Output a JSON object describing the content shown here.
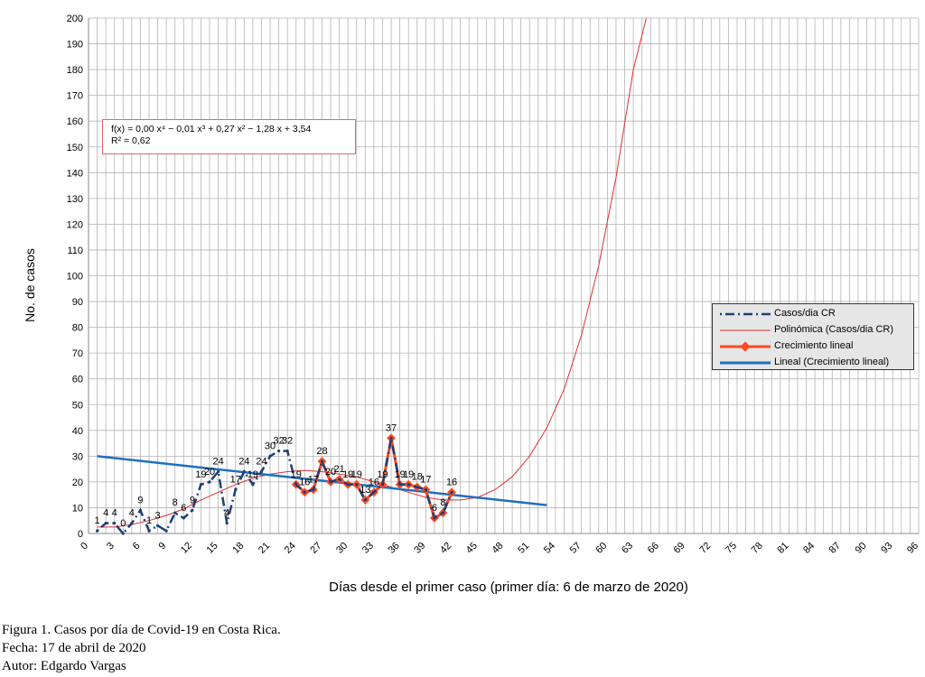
{
  "chart_data": {
    "type": "line",
    "title": "",
    "xlabel": "Días desde el primer caso (primer día: 6 de marzo de 2020)",
    "ylabel": "No. de casos",
    "xlim": [
      0,
      96
    ],
    "ylim": [
      0,
      200
    ],
    "x_ticks": [
      0,
      3,
      6,
      9,
      12,
      15,
      18,
      21,
      24,
      27,
      30,
      33,
      36,
      39,
      42,
      45,
      48,
      51,
      54,
      57,
      60,
      63,
      66,
      69,
      72,
      75,
      78,
      81,
      84,
      87,
      90,
      93,
      96
    ],
    "y_ticks": [
      0,
      10,
      20,
      30,
      40,
      50,
      60,
      70,
      80,
      90,
      100,
      110,
      120,
      130,
      140,
      150,
      160,
      170,
      180,
      190,
      200
    ],
    "grid": true,
    "legend_position": "right",
    "series": [
      {
        "name": "Casos/dia CR",
        "style": "dash-dot",
        "color": "#1f3f7a",
        "x": [
          1,
          2,
          3,
          4,
          5,
          6,
          7,
          8,
          9,
          10,
          11,
          12,
          13,
          14,
          15,
          16,
          17,
          18,
          19,
          20,
          21,
          22,
          23,
          24,
          25,
          26,
          27,
          28,
          29,
          30,
          31,
          32,
          33,
          34,
          35,
          36,
          37,
          38,
          39,
          40,
          41,
          42
        ],
        "values": [
          1,
          4,
          4,
          0,
          4,
          9,
          1,
          3,
          1,
          8,
          6,
          9,
          19,
          20,
          24,
          4,
          17,
          24,
          19,
          24,
          30,
          32,
          32,
          19,
          16,
          17,
          28,
          20,
          21,
          19,
          19,
          13,
          16,
          19,
          37,
          19,
          19,
          18,
          17,
          6,
          8,
          16
        ]
      },
      {
        "name": "Polinómica (Casos/dia CR)",
        "style": "line",
        "color": "#e03030",
        "x": [
          1,
          3,
          5,
          7,
          9,
          11,
          13,
          15,
          17,
          19,
          21,
          23,
          25,
          27,
          29,
          31,
          33,
          35,
          37,
          39,
          41,
          43,
          45,
          47,
          49,
          51,
          53,
          55,
          57,
          59,
          61,
          63,
          64.5
        ],
        "values": [
          2.5,
          2.5,
          3.5,
          5,
          7,
          9.5,
          13,
          16,
          19,
          21.5,
          23,
          24,
          24.5,
          24,
          23,
          22,
          20,
          18,
          16,
          14,
          13,
          13,
          14,
          17,
          22,
          30,
          41,
          56,
          77,
          104,
          138,
          180,
          200
        ]
      },
      {
        "name": "Crecimiento lineal",
        "style": "marker-line",
        "color": "#ff4a1f",
        "x": [
          24,
          25,
          26,
          27,
          28,
          29,
          30,
          31,
          32,
          33,
          34,
          35,
          36,
          37,
          38,
          39,
          40,
          41,
          42
        ],
        "values": [
          19,
          16,
          17,
          28,
          20,
          21,
          19,
          19,
          13,
          16,
          19,
          37,
          19,
          19,
          18,
          17,
          6,
          8,
          16
        ]
      },
      {
        "name": "Lineal (Crecimiento lineal)",
        "style": "line",
        "color": "#1f6fbf",
        "x": [
          1,
          53
        ],
        "values": [
          30,
          11
        ]
      }
    ],
    "data_labels": [
      {
        "x": 1,
        "y": 1,
        "text": "1"
      },
      {
        "x": 2,
        "y": 4,
        "text": "4"
      },
      {
        "x": 3,
        "y": 4,
        "text": "4"
      },
      {
        "x": 4,
        "y": 0,
        "text": "0"
      },
      {
        "x": 5,
        "y": 4,
        "text": "4"
      },
      {
        "x": 6,
        "y": 9,
        "text": "9"
      },
      {
        "x": 7,
        "y": 1,
        "text": "1"
      },
      {
        "x": 8,
        "y": 3,
        "text": "3"
      },
      {
        "x": 10,
        "y": 8,
        "text": "8"
      },
      {
        "x": 11,
        "y": 6,
        "text": "6"
      },
      {
        "x": 12,
        "y": 9,
        "text": "9"
      },
      {
        "x": 13,
        "y": 19,
        "text": "19"
      },
      {
        "x": 14,
        "y": 20,
        "text": "20"
      },
      {
        "x": 15,
        "y": 24,
        "text": "24"
      },
      {
        "x": 16,
        "y": 4,
        "text": "4"
      },
      {
        "x": 17,
        "y": 17,
        "text": "17"
      },
      {
        "x": 18,
        "y": 24,
        "text": "24"
      },
      {
        "x": 19,
        "y": 19,
        "text": "19"
      },
      {
        "x": 20,
        "y": 24,
        "text": "24"
      },
      {
        "x": 21,
        "y": 30,
        "text": "30"
      },
      {
        "x": 22,
        "y": 32,
        "text": "32"
      },
      {
        "x": 23,
        "y": 32,
        "text": "32"
      },
      {
        "x": 24,
        "y": 19,
        "text": "19"
      },
      {
        "x": 25,
        "y": 16,
        "text": "16"
      },
      {
        "x": 26,
        "y": 17,
        "text": "17"
      },
      {
        "x": 27,
        "y": 28,
        "text": "28"
      },
      {
        "x": 28,
        "y": 20,
        "text": "20"
      },
      {
        "x": 29,
        "y": 21,
        "text": "21"
      },
      {
        "x": 30,
        "y": 19,
        "text": "19"
      },
      {
        "x": 31,
        "y": 19,
        "text": "19"
      },
      {
        "x": 32,
        "y": 13,
        "text": "13"
      },
      {
        "x": 33,
        "y": 16,
        "text": "16"
      },
      {
        "x": 34,
        "y": 19,
        "text": "19"
      },
      {
        "x": 35,
        "y": 37,
        "text": "37"
      },
      {
        "x": 36,
        "y": 19,
        "text": "19"
      },
      {
        "x": 37,
        "y": 19,
        "text": "19"
      },
      {
        "x": 38,
        "y": 18,
        "text": "18"
      },
      {
        "x": 39,
        "y": 17,
        "text": "17"
      },
      {
        "x": 40,
        "y": 6,
        "text": "6"
      },
      {
        "x": 41,
        "y": 8,
        "text": "8"
      },
      {
        "x": 42,
        "y": 16,
        "text": "16"
      }
    ],
    "trendline_equation": "f(x) = 0,00 x⁴ − 0,01 x³ + 0,27 x² − 1,28 x + 3,54",
    "trendline_r2": "R² = 0,62"
  },
  "caption": {
    "line1": "Figura 1. Casos por día de Covid-19 en Costa Rica.",
    "line2": "Fecha: 17 de abril de 2020",
    "line3": "Autor: Edgardo Vargas"
  }
}
